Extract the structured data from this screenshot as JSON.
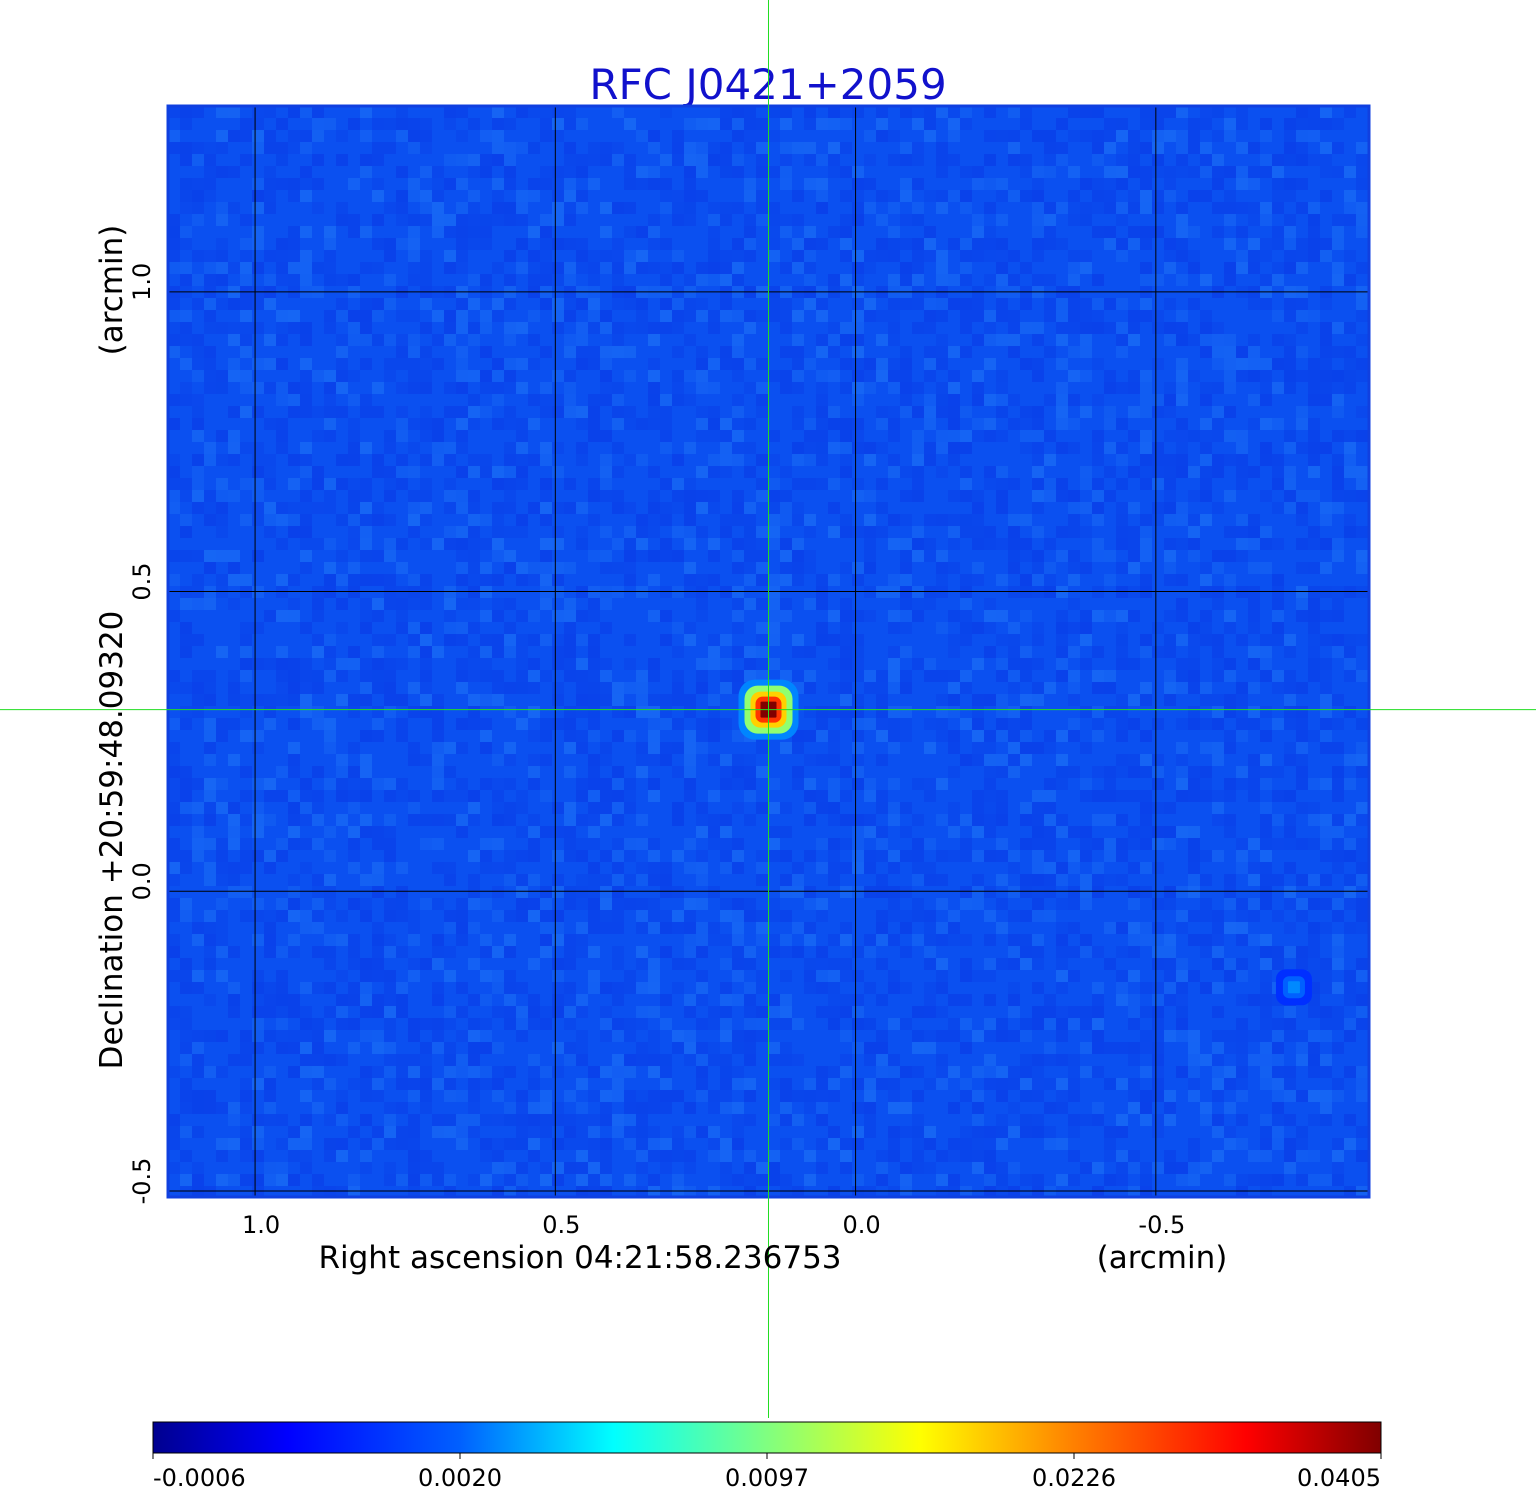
{
  "chart_data": {
    "type": "heatmap",
    "title": "RFC J0421+2059",
    "title_color": "#1111cc",
    "xlabel": "Right ascension  04:21:58.236753",
    "xlabel_unit": "(arcmin)",
    "ylabel": "Declination  +20:59:48.09320",
    "ylabel_unit": "(arcmin)",
    "xlim": [
      1.145,
      -0.855
    ],
    "ylim": [
      -0.51,
      1.31
    ],
    "x_reversed": true,
    "x_ticks": [
      1.0,
      0.5,
      0.0,
      -0.5
    ],
    "x_tick_labels": [
      "1.0",
      "0.5",
      "0.0",
      "-0.5"
    ],
    "y_ticks": [
      -0.5,
      0.0,
      0.5,
      1.0
    ],
    "y_tick_labels": [
      "-0.5",
      "0.0",
      "0.5",
      "1.0"
    ],
    "grid": true,
    "grid_color": "#000000",
    "crosshair": {
      "x": 0.145,
      "y": 0.303,
      "color": "#22dd22"
    },
    "background_level": 0.0005,
    "sources": [
      {
        "x": 0.145,
        "y": 0.303,
        "peak": 0.0405
      },
      {
        "x": -0.73,
        "y": -0.16,
        "peak": 0.003
      }
    ],
    "colormap": "jet",
    "colorbar": {
      "orientation": "horizontal",
      "min": -0.0006,
      "max": 0.0405,
      "tick_labels": [
        "-0.0006",
        "0.0020",
        "0.0097",
        "0.0226",
        "0.0405"
      ]
    }
  }
}
